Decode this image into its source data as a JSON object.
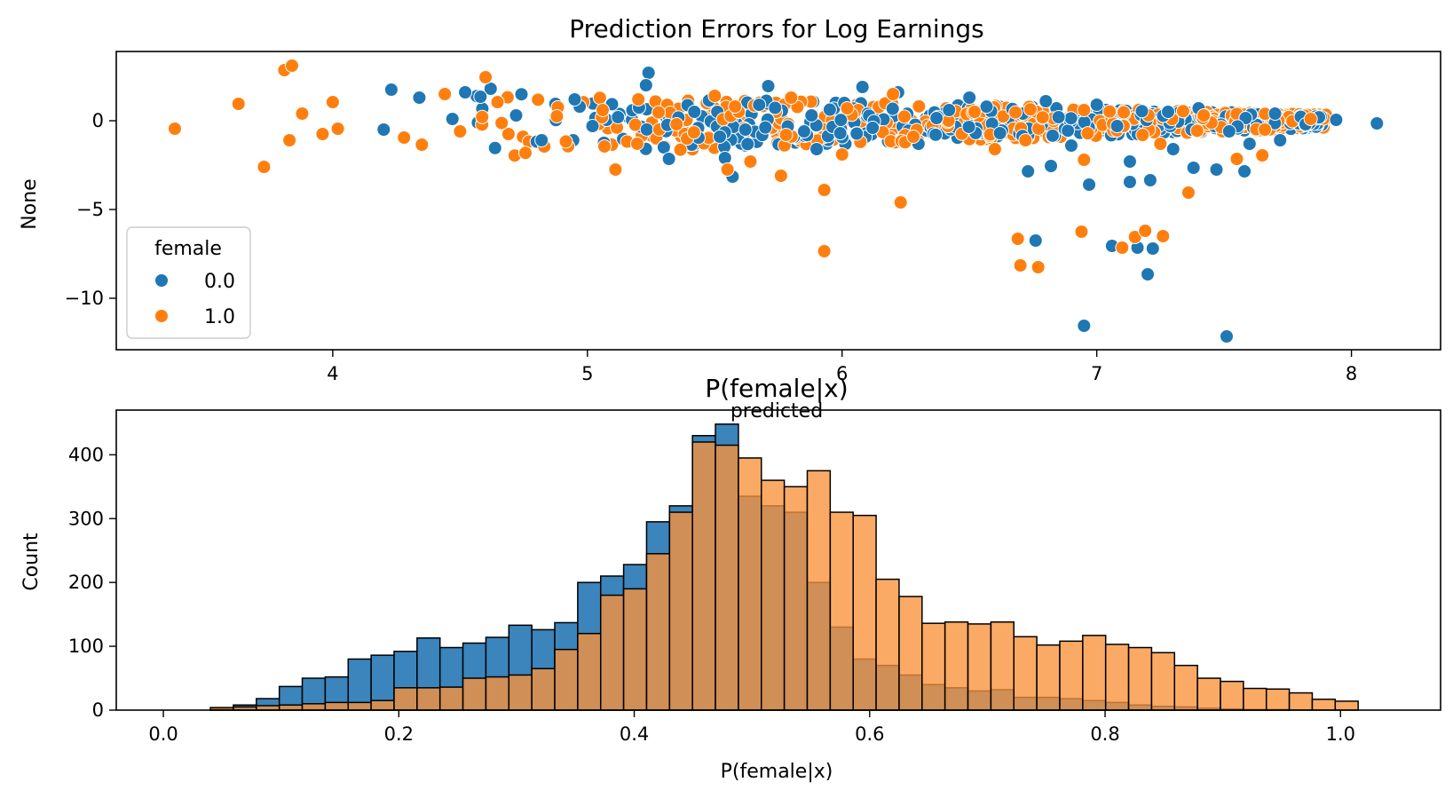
{
  "colors": {
    "blue": "#1f77b4",
    "orange": "#ff7f0e",
    "blue_hist": "#3b84bc",
    "orange_hist": "#f8923a",
    "overlap_hist": "#d17f3a"
  },
  "chart_data": [
    {
      "type": "scatter",
      "title": "Prediction Errors for Log Earnings",
      "xlabel": "predicted",
      "ylabel": "None",
      "xlim": [
        3.15,
        8.35
      ],
      "ylim": [
        -12.9,
        3.9
      ],
      "xticks": [
        4,
        5,
        6,
        7,
        8
      ],
      "yticks": [
        0,
        -5,
        -10
      ],
      "ytick_labels": [
        "0",
        "−5",
        "−10"
      ],
      "legend": {
        "title": "female",
        "location": "lower-left",
        "entries": [
          "0.0",
          "1.0"
        ]
      },
      "series": [
        {
          "name": "0.0",
          "color": "#1f77b4",
          "points": [
            [
              4.23,
              1.75
            ],
            [
              4.34,
              1.3
            ],
            [
              4.52,
              1.6
            ],
            [
              4.62,
              1.8
            ],
            [
              4.58,
              1.35
            ],
            [
              4.95,
              1.2
            ],
            [
              5.24,
              2.7
            ],
            [
              5.23,
              2.0
            ],
            [
              5.71,
              1.95
            ],
            [
              6.08,
              1.9
            ],
            [
              6.22,
              1.6
            ],
            [
              5.52,
              -0.9
            ],
            [
              5.54,
              -2.1
            ],
            [
              5.57,
              -3.15
            ],
            [
              5.3,
              -1.5
            ],
            [
              5.32,
              -2.15
            ],
            [
              4.82,
              -1.1
            ],
            [
              4.2,
              -0.5
            ],
            [
              6.73,
              -2.85
            ],
            [
              6.82,
              -2.55
            ],
            [
              6.97,
              -3.6
            ],
            [
              7.13,
              -3.45
            ],
            [
              7.21,
              -3.35
            ],
            [
              7.13,
              -2.3
            ],
            [
              7.38,
              -2.65
            ],
            [
              7.47,
              -2.75
            ],
            [
              7.58,
              -2.85
            ],
            [
              7.06,
              -7.05
            ],
            [
              7.16,
              -7.15
            ],
            [
              7.22,
              -7.2
            ],
            [
              6.76,
              -6.75
            ],
            [
              7.2,
              -8.65
            ],
            [
              6.95,
              -11.55
            ],
            [
              7.51,
              -12.15
            ],
            [
              8.1,
              -0.15
            ],
            [
              7.94,
              0.05
            ],
            [
              7.6,
              -1.3
            ],
            [
              7.72,
              -1.1
            ],
            [
              7.3,
              -1.6
            ],
            [
              6.9,
              -1.4
            ],
            [
              6.5,
              1.3
            ],
            [
              6.8,
              1.1
            ],
            [
              7.0,
              0.9
            ],
            [
              7.4,
              0.7
            ],
            [
              5.9,
              -1.6
            ],
            [
              6.3,
              -1.3
            ],
            [
              4.47,
              0.1
            ],
            [
              4.72,
              0.3
            ],
            [
              5.02,
              -0.3
            ],
            [
              5.12,
              0.2
            ],
            [
              5.42,
              0.5
            ],
            [
              5.62,
              -0.5
            ],
            [
              5.88,
              0.3
            ],
            [
              6.12,
              -0.4
            ],
            [
              6.42,
              0.6
            ],
            [
              6.62,
              -0.7
            ],
            [
              6.85,
              0.2
            ],
            [
              7.08,
              -0.3
            ],
            [
              7.28,
              0.5
            ],
            [
              7.52,
              -0.6
            ],
            [
              7.7,
              0.4
            ],
            [
              7.82,
              -0.2
            ]
          ]
        },
        {
          "name": "1.0",
          "color": "#ff7f0e",
          "points": [
            [
              3.38,
              -0.45
            ],
            [
              3.63,
              0.95
            ],
            [
              3.73,
              -2.6
            ],
            [
              3.81,
              2.85
            ],
            [
              3.84,
              3.1
            ],
            [
              3.83,
              -1.1
            ],
            [
              3.88,
              0.4
            ],
            [
              3.96,
              -0.75
            ],
            [
              4.0,
              1.05
            ],
            [
              4.02,
              -0.45
            ],
            [
              4.44,
              1.5
            ],
            [
              4.6,
              2.45
            ],
            [
              5.11,
              -2.75
            ],
            [
              5.55,
              -2.75
            ],
            [
              5.64,
              -2.3
            ],
            [
              5.76,
              -3.1
            ],
            [
              5.93,
              -3.9
            ],
            [
              5.93,
              -7.35
            ],
            [
              6.23,
              -4.6
            ],
            [
              6.94,
              -6.25
            ],
            [
              6.69,
              -6.65
            ],
            [
              6.7,
              -8.15
            ],
            [
              6.77,
              -8.25
            ],
            [
              7.1,
              -7.15
            ],
            [
              7.15,
              -6.55
            ],
            [
              7.19,
              -6.2
            ],
            [
              7.26,
              -6.5
            ],
            [
              7.36,
              -4.05
            ],
            [
              6.95,
              -2.2
            ],
            [
              7.55,
              -2.15
            ],
            [
              7.65,
              -1.95
            ],
            [
              4.28,
              -0.95
            ],
            [
              4.35,
              -1.35
            ],
            [
              4.5,
              -0.6
            ],
            [
              4.88,
              0.25
            ],
            [
              5.06,
              0.6
            ],
            [
              5.35,
              -0.2
            ],
            [
              5.58,
              0.8
            ],
            [
              5.78,
              -0.8
            ],
            [
              6.02,
              0.7
            ],
            [
              6.28,
              -0.9
            ],
            [
              6.52,
              0.5
            ],
            [
              6.72,
              -1.1
            ],
            [
              6.95,
              0.6
            ],
            [
              7.18,
              -0.8
            ],
            [
              7.42,
              0.3
            ],
            [
              7.66,
              -0.5
            ],
            [
              7.84,
              0.1
            ],
            [
              6.0,
              -1.9
            ],
            [
              6.6,
              -1.6
            ],
            [
              7.25,
              -1.3
            ],
            [
              5.2,
              1.2
            ],
            [
              5.5,
              1.4
            ],
            [
              5.8,
              1.3
            ],
            [
              6.2,
              1.5
            ]
          ]
        }
      ]
    },
    {
      "type": "histogram",
      "title": "P(female|x)",
      "xlabel": "P(female|x)",
      "ylabel": "Count",
      "xlim": [
        -0.04,
        1.085
      ],
      "ylim": [
        0,
        470
      ],
      "xticks": [
        0.0,
        0.2,
        0.4,
        0.6,
        0.8,
        1.0
      ],
      "xtick_labels": [
        "0.0",
        "0.2",
        "0.4",
        "0.6",
        "0.8",
        "1.0"
      ],
      "yticks": [
        0,
        100,
        200,
        300,
        400
      ],
      "bin_start": 0.04,
      "bin_width": 0.0195,
      "series": [
        {
          "name": "0.0",
          "color": "#3b84bc",
          "counts": [
            2,
            8,
            18,
            37,
            50,
            52,
            80,
            86,
            92,
            113,
            98,
            105,
            114,
            133,
            126,
            137,
            200,
            210,
            228,
            295,
            320,
            430,
            448,
            335,
            320,
            310,
            200,
            130,
            80,
            70,
            55,
            40,
            35,
            30,
            32,
            20,
            20,
            18,
            15,
            12,
            8,
            6,
            5,
            3,
            2,
            1,
            1,
            0
          ]
        },
        {
          "name": "1.0",
          "color": "#f8923a",
          "counts": [
            4,
            5,
            7,
            8,
            10,
            12,
            12,
            15,
            35,
            35,
            36,
            50,
            52,
            55,
            65,
            95,
            120,
            180,
            190,
            245,
            310,
            420,
            415,
            395,
            360,
            350,
            375,
            310,
            305,
            205,
            178,
            136,
            138,
            135,
            138,
            115,
            102,
            108,
            117,
            103,
            98,
            90,
            70,
            50,
            45,
            34,
            33,
            27,
            17,
            14
          ]
        }
      ]
    }
  ]
}
